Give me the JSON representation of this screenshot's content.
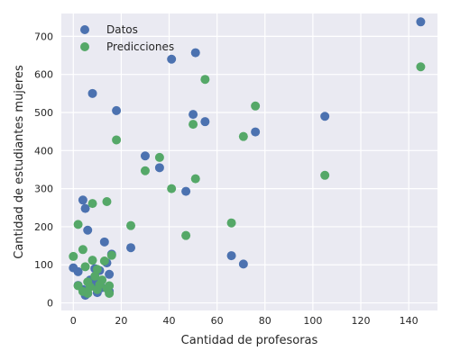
{
  "chart_data": {
    "type": "scatter",
    "title": "",
    "xlabel": "Cantidad de profesoras",
    "ylabel": "Cantidad de estudiantes mujeres",
    "xlim": [
      -5,
      152
    ],
    "ylim": [
      -20,
      760
    ],
    "xticks": [
      0,
      20,
      40,
      60,
      80,
      100,
      120,
      140
    ],
    "yticks": [
      0,
      100,
      200,
      300,
      400,
      500,
      600,
      700
    ],
    "grid": true,
    "legend_position": "top-left",
    "background_color": "#eaeaf2",
    "series": [
      {
        "name": "Datos",
        "color": "#4c72b0",
        "points": [
          [
            145,
            738
          ],
          [
            41,
            640
          ],
          [
            51,
            657
          ],
          [
            8,
            550
          ],
          [
            18,
            505
          ],
          [
            50,
            495
          ],
          [
            55,
            476
          ],
          [
            105,
            490
          ],
          [
            76,
            449
          ],
          [
            30,
            386
          ],
          [
            36,
            355
          ],
          [
            47,
            293
          ],
          [
            4,
            270
          ],
          [
            5,
            248
          ],
          [
            6,
            191
          ],
          [
            13,
            160
          ],
          [
            24,
            145
          ],
          [
            66,
            124
          ],
          [
            71,
            102
          ],
          [
            0,
            92
          ],
          [
            2,
            82
          ],
          [
            16,
            128
          ],
          [
            15,
            75
          ],
          [
            9,
            90
          ],
          [
            11,
            85
          ],
          [
            7,
            60
          ],
          [
            8,
            45
          ],
          [
            12,
            40
          ],
          [
            2,
            46
          ],
          [
            10,
            27
          ],
          [
            5,
            20
          ],
          [
            6,
            25
          ],
          [
            15,
            30
          ],
          [
            14,
            105
          ],
          [
            4,
            35
          ],
          [
            9,
            55
          ]
        ]
      },
      {
        "name": "Predicciones",
        "color": "#55a868",
        "points": [
          [
            145,
            620
          ],
          [
            55,
            587
          ],
          [
            76,
            517
          ],
          [
            50,
            469
          ],
          [
            71,
            437
          ],
          [
            18,
            428
          ],
          [
            36,
            382
          ],
          [
            30,
            347
          ],
          [
            105,
            335
          ],
          [
            51,
            326
          ],
          [
            41,
            300
          ],
          [
            14,
            266
          ],
          [
            8,
            261
          ],
          [
            24,
            203
          ],
          [
            2,
            206
          ],
          [
            66,
            210
          ],
          [
            47,
            177
          ],
          [
            4,
            140
          ],
          [
            0,
            122
          ],
          [
            16,
            125
          ],
          [
            13,
            110
          ],
          [
            8,
            112
          ],
          [
            5,
            95
          ],
          [
            10,
            88
          ],
          [
            9,
            70
          ],
          [
            12,
            60
          ],
          [
            6,
            55
          ],
          [
            7,
            42
          ],
          [
            2,
            45
          ],
          [
            14,
            38
          ],
          [
            15,
            45
          ],
          [
            6,
            25
          ],
          [
            15,
            25
          ],
          [
            10,
            35
          ],
          [
            4,
            30
          ],
          [
            11,
            48
          ]
        ]
      }
    ]
  }
}
